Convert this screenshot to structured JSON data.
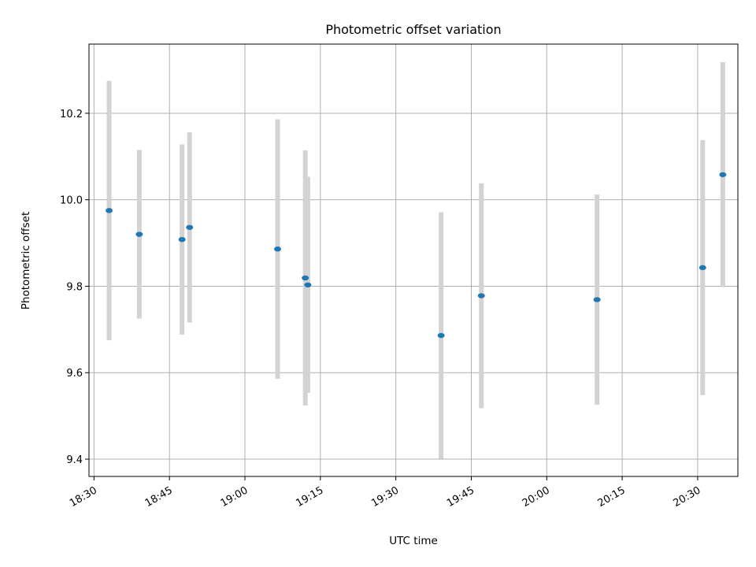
{
  "chart_data": {
    "type": "scatter",
    "title": "Photometric offset variation",
    "xlabel": "UTC time",
    "ylabel": "Photometric offset",
    "xlim": [
      "18:29",
      "20:38"
    ],
    "ylim": [
      9.36,
      10.36
    ],
    "x_ticks": [
      "18:30",
      "18:45",
      "19:00",
      "19:15",
      "19:30",
      "19:45",
      "20:00",
      "20:15",
      "20:30"
    ],
    "y_ticks": [
      9.4,
      9.6,
      9.8,
      10.0,
      10.2
    ],
    "grid": true,
    "colors": {
      "point": "#1f77b4",
      "errorbar": "#d3d3d3",
      "grid": "#b0b0b0"
    },
    "points": [
      {
        "x": "18:33",
        "y": 9.975,
        "err": 0.3
      },
      {
        "x": "18:39",
        "y": 9.92,
        "err": 0.195
      },
      {
        "x": "18:47.5",
        "y": 9.908,
        "err": 0.22
      },
      {
        "x": "18:49",
        "y": 9.936,
        "err": 0.22
      },
      {
        "x": "19:06.5",
        "y": 9.886,
        "err": 0.3
      },
      {
        "x": "19:12",
        "y": 9.819,
        "err": 0.295
      },
      {
        "x": "19:12.5",
        "y": 9.803,
        "err": 0.25
      },
      {
        "x": "19:39",
        "y": 9.686,
        "err": 0.285
      },
      {
        "x": "19:47",
        "y": 9.778,
        "err": 0.26
      },
      {
        "x": "20:10",
        "y": 9.769,
        "err": 0.243
      },
      {
        "x": "20:31",
        "y": 9.843,
        "err": 0.295
      },
      {
        "x": "20:35",
        "y": 10.058,
        "err": 0.26
      }
    ]
  }
}
